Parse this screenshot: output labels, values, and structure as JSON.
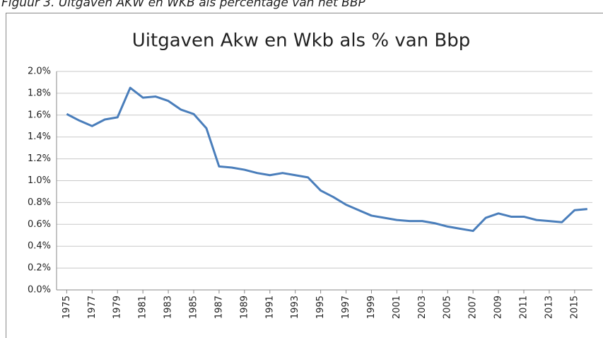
{
  "caption": "Figuur 3. Uitgaven AKW en WKB als percentage van het BBP",
  "chart_data": {
    "type": "line",
    "title": "Uitgaven Akw en Wkb als % van Bbp",
    "x": [
      1975,
      1976,
      1977,
      1978,
      1979,
      1980,
      1981,
      1982,
      1983,
      1984,
      1985,
      1986,
      1987,
      1988,
      1989,
      1990,
      1991,
      1992,
      1993,
      1994,
      1995,
      1996,
      1997,
      1998,
      1999,
      2000,
      2001,
      2002,
      2003,
      2004,
      2005,
      2006,
      2007,
      2008,
      2009,
      2010,
      2011,
      2012,
      2013,
      2014,
      2015,
      2016
    ],
    "series": [
      {
        "color": "#4a7ebb",
        "values": [
          1.61,
          1.55,
          1.5,
          1.56,
          1.58,
          1.85,
          1.76,
          1.77,
          1.73,
          1.65,
          1.61,
          1.48,
          1.13,
          1.12,
          1.1,
          1.07,
          1.05,
          1.07,
          1.05,
          1.03,
          0.91,
          0.85,
          0.78,
          0.73,
          0.68,
          0.66,
          0.64,
          0.63,
          0.63,
          0.61,
          0.58,
          0.56,
          0.54,
          0.66,
          0.7,
          0.67,
          0.67,
          0.64,
          0.63,
          0.62,
          0.73,
          0.74
        ]
      }
    ],
    "xlim": [
      1974.2,
      2016.4
    ],
    "xticks": [
      1975,
      1977,
      1979,
      1981,
      1983,
      1985,
      1987,
      1989,
      1991,
      1993,
      1995,
      1997,
      1999,
      2001,
      2003,
      2005,
      2007,
      2009,
      2011,
      2013,
      2015
    ],
    "ylim": [
      0,
      2
    ],
    "yticks": [
      {
        "value": 0,
        "label": "0.0%"
      },
      {
        "value": 0.2,
        "label": "0.2%"
      },
      {
        "value": 0.4,
        "label": "0.4%"
      },
      {
        "value": 0.6,
        "label": "0.6%"
      },
      {
        "value": 0.8,
        "label": "0.8%"
      },
      {
        "value": 1.0,
        "label": "1.0%"
      },
      {
        "value": 1.2,
        "label": "1.2%"
      },
      {
        "value": 1.4,
        "label": "1.4%"
      },
      {
        "value": 1.6,
        "label": "1.6%"
      },
      {
        "value": 1.8,
        "label": "1.8%"
      },
      {
        "value": 2.0,
        "label": "2.0%"
      }
    ],
    "grid": true
  }
}
